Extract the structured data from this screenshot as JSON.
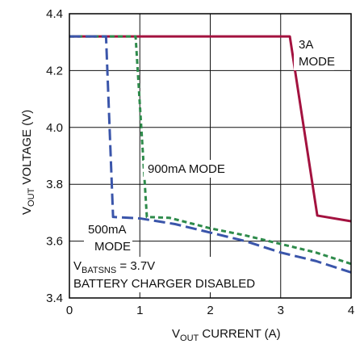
{
  "chart_data": {
    "type": "line",
    "xlabel": {
      "main": "V",
      "sub": "OUT",
      "rest": " CURRENT (A)"
    },
    "ylabel": {
      "main": "V",
      "sub": "OUT",
      "rest": " VOLTAGE (V)"
    },
    "xlim": [
      0,
      4
    ],
    "ylim": [
      3.4,
      4.4
    ],
    "xticks": [
      0,
      1,
      2,
      3,
      4
    ],
    "yticks": [
      3.4,
      3.6,
      3.8,
      4.0,
      4.2,
      4.4
    ],
    "xtick_labels": [
      "0",
      "1",
      "2",
      "3",
      "4"
    ],
    "ytick_labels": [
      "3.4",
      "3.6",
      "3.8",
      "4.0",
      "4.2",
      "4.4"
    ],
    "grid": true,
    "series": [
      {
        "name": "3A MODE",
        "color": "#a3123f",
        "style": "solid",
        "x": [
          0,
          3.13,
          3.52,
          4.0
        ],
        "y": [
          4.32,
          4.32,
          3.69,
          3.67
        ]
      },
      {
        "name": "900mA MODE",
        "color": "#2e8b4b",
        "style": "short-dash",
        "x": [
          0,
          0.94,
          1.1,
          1.42,
          2.0,
          2.5,
          3.0,
          3.5,
          4.0
        ],
        "y": [
          4.32,
          4.32,
          3.685,
          3.682,
          3.645,
          3.62,
          3.59,
          3.56,
          3.52
        ]
      },
      {
        "name": "500mA MODE",
        "color": "#3a55aa",
        "style": "long-dash",
        "x": [
          0,
          0.52,
          0.62,
          1.0,
          1.5,
          2.0,
          2.5,
          3.0,
          3.5,
          4.0
        ],
        "y": [
          4.32,
          4.32,
          3.685,
          3.68,
          3.66,
          3.63,
          3.6,
          3.56,
          3.53,
          3.49
        ]
      }
    ],
    "annotations": {
      "mode_3a": [
        "3A",
        "MODE"
      ],
      "mode_900": "900mA MODE",
      "mode_500": [
        "500mA",
        "MODE"
      ],
      "condition_1": {
        "main": "V",
        "sub": "BATSNS",
        "rest": " = 3.7V"
      },
      "condition_2": "BATTERY CHARGER DISABLED"
    }
  }
}
